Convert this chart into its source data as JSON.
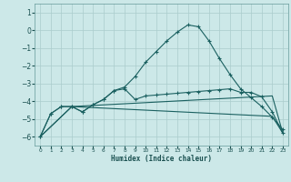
{
  "xlabel": "Humidex (Indice chaleur)",
  "bg_color": "#cce8e8",
  "grid_color": "#aacccc",
  "line_color": "#1a6060",
  "xlim": [
    -0.5,
    23.5
  ],
  "ylim": [
    -6.5,
    1.5
  ],
  "xticks": [
    0,
    1,
    2,
    3,
    4,
    5,
    6,
    7,
    8,
    9,
    10,
    11,
    12,
    13,
    14,
    15,
    16,
    17,
    18,
    19,
    20,
    21,
    22,
    23
  ],
  "yticks": [
    1,
    0,
    -1,
    -2,
    -3,
    -4,
    -5,
    -6
  ],
  "series1_x": [
    0,
    1,
    2,
    3,
    4,
    5,
    6,
    7,
    8,
    9,
    10,
    11,
    12,
    13,
    14,
    15,
    16,
    17,
    18,
    19,
    20,
    21,
    22,
    23
  ],
  "series1_y": [
    -6.0,
    -4.7,
    -4.3,
    -4.3,
    -4.6,
    -4.2,
    -3.9,
    -3.4,
    -3.2,
    -2.6,
    -1.8,
    -1.2,
    -0.6,
    -0.1,
    0.3,
    0.2,
    -0.6,
    -1.6,
    -2.5,
    -3.3,
    -3.8,
    -4.3,
    -4.9,
    -5.6
  ],
  "series2_x": [
    0,
    1,
    2,
    3,
    4,
    5,
    6,
    7,
    8,
    9,
    10,
    11,
    12,
    13,
    14,
    15,
    16,
    17,
    18,
    19,
    20,
    21,
    22,
    23
  ],
  "series2_y": [
    -6.0,
    -4.7,
    -4.3,
    -4.3,
    -4.6,
    -4.2,
    -3.9,
    -3.4,
    -3.3,
    -3.9,
    -3.7,
    -3.65,
    -3.6,
    -3.55,
    -3.5,
    -3.45,
    -3.4,
    -3.35,
    -3.3,
    -3.5,
    -3.5,
    -3.75,
    -4.6,
    -5.8
  ],
  "series3_x": [
    0,
    3,
    22,
    23
  ],
  "series3_y": [
    -6.0,
    -4.3,
    -3.7,
    -5.8
  ],
  "series4_x": [
    0,
    3,
    22,
    23
  ],
  "series4_y": [
    -6.0,
    -4.3,
    -4.85,
    -5.8
  ]
}
